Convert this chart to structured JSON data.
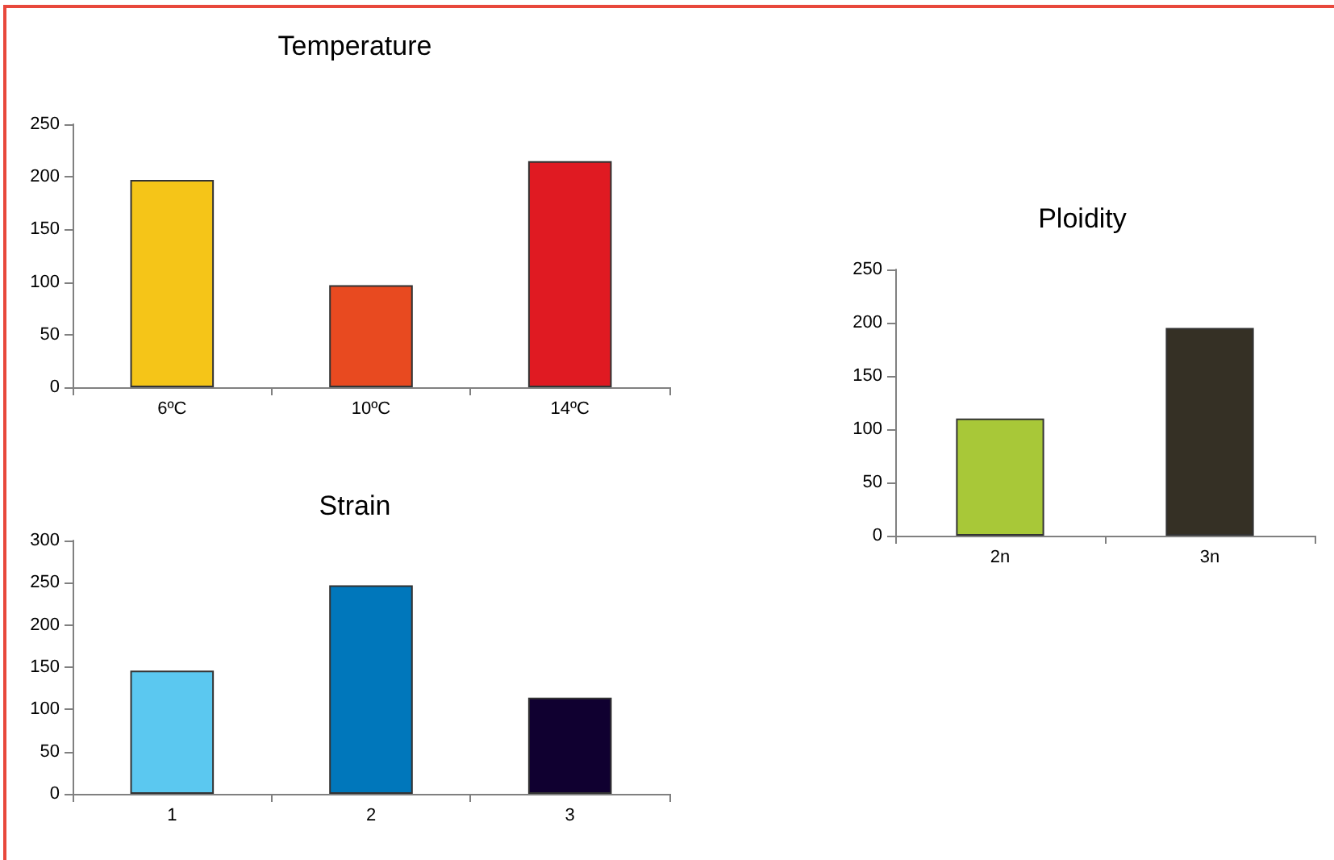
{
  "chart_data": [
    {
      "type": "bar",
      "title": "Temperature",
      "categories": [
        "6ºC",
        "10ºC",
        "14ºC"
      ],
      "values": [
        197,
        97,
        215
      ],
      "colors": [
        "#f5c518",
        "#e84a20",
        "#e01a22"
      ],
      "ylim": [
        0,
        250
      ],
      "yticks": [
        0,
        50,
        100,
        150,
        200,
        250
      ],
      "grid": false
    },
    {
      "type": "bar",
      "title": "Strain",
      "categories": [
        "1",
        "2",
        "3"
      ],
      "values": [
        146,
        247,
        114
      ],
      "colors": [
        "#5bc8f0",
        "#0077bb",
        "#100030"
      ],
      "ylim": [
        0,
        300
      ],
      "yticks": [
        0,
        50,
        100,
        150,
        200,
        250,
        300
      ],
      "grid": false
    },
    {
      "type": "bar",
      "title": "Ploidity",
      "categories": [
        "2n",
        "3n"
      ],
      "values": [
        110,
        195
      ],
      "colors": [
        "#a8c838",
        "#353025"
      ],
      "ylim": [
        0,
        250
      ],
      "yticks": [
        0,
        50,
        100,
        150,
        200,
        250
      ],
      "grid": false
    }
  ]
}
